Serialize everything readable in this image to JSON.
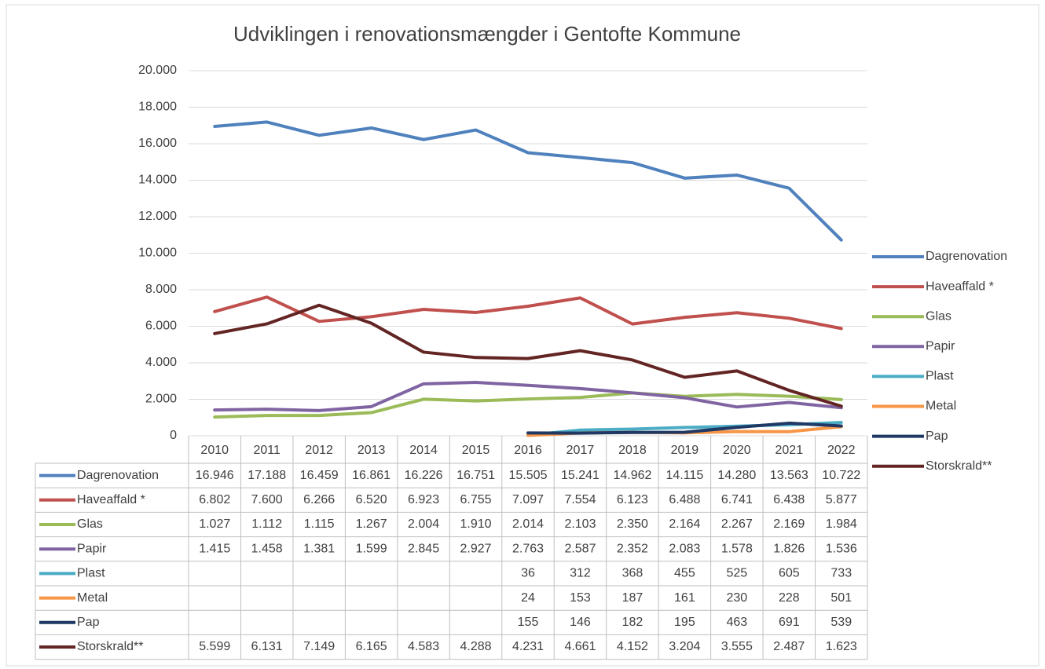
{
  "chart_data": {
    "type": "line",
    "title": "Udviklingen i renovationsmængder i Gentofte Kommune",
    "categories": [
      "2010",
      "2011",
      "2012",
      "2013",
      "2014",
      "2015",
      "2016",
      "2017",
      "2018",
      "2019",
      "2020",
      "2021",
      "2022"
    ],
    "ylim": [
      0,
      20000
    ],
    "yticks": [
      0,
      {
        "value": 2000,
        "label": "2.000"
      },
      {
        "value": 4000,
        "label": "4.000"
      },
      {
        "value": 6000,
        "label": "6.000"
      },
      {
        "value": 8000,
        "label": "8.000"
      },
      {
        "value": 10000,
        "label": "10.000"
      },
      {
        "value": 12000,
        "label": "12.000"
      },
      {
        "value": 14000,
        "label": "14.000"
      },
      {
        "value": 16000,
        "label": "16.000"
      },
      {
        "value": 18000,
        "label": "18.000"
      },
      {
        "value": 20000,
        "label": "20.000"
      }
    ],
    "grid": true,
    "legend": "right",
    "series": [
      {
        "name": "Dagrenovation",
        "color": "#4f81bd",
        "values": [
          16946,
          17188,
          16459,
          16861,
          16226,
          16751,
          15505,
          15241,
          14962,
          14115,
          14280,
          13563,
          10722
        ],
        "value_labels": [
          "16.946",
          "17.188",
          "16.459",
          "16.861",
          "16.226",
          "16.751",
          "15.505",
          "15.241",
          "14.962",
          "14.115",
          "14.280",
          "13.563",
          "10.722"
        ]
      },
      {
        "name": "Haveaffald *",
        "color": "#c0504d",
        "values": [
          6802,
          7600,
          6266,
          6520,
          6923,
          6755,
          7097,
          7554,
          6123,
          6488,
          6741,
          6438,
          5877
        ],
        "value_labels": [
          "6.802",
          "7.600",
          "6.266",
          "6.520",
          "6.923",
          "6.755",
          "7.097",
          "7.554",
          "6.123",
          "6.488",
          "6.741",
          "6.438",
          "5.877"
        ]
      },
      {
        "name": "Glas",
        "color": "#9bbb59",
        "values": [
          1027,
          1112,
          1115,
          1267,
          2004,
          1910,
          2014,
          2103,
          2350,
          2164,
          2267,
          2169,
          1984
        ],
        "value_labels": [
          "1.027",
          "1.112",
          "1.115",
          "1.267",
          "2.004",
          "1.910",
          "2.014",
          "2.103",
          "2.350",
          "2.164",
          "2.267",
          "2.169",
          "1.984"
        ]
      },
      {
        "name": "Papir",
        "color": "#8064a2",
        "values": [
          1415,
          1458,
          1381,
          1599,
          2845,
          2927,
          2763,
          2587,
          2352,
          2083,
          1578,
          1826,
          1536
        ],
        "value_labels": [
          "1.415",
          "1.458",
          "1.381",
          "1.599",
          "2.845",
          "2.927",
          "2.763",
          "2.587",
          "2.352",
          "2.083",
          "1.578",
          "1.826",
          "1.536"
        ]
      },
      {
        "name": "Plast",
        "color": "#4bacc6",
        "values": [
          null,
          null,
          null,
          null,
          null,
          null,
          36,
          312,
          368,
          455,
          525,
          605,
          733
        ]
      },
      {
        "name": "Metal",
        "color": "#f79646",
        "values": [
          null,
          null,
          null,
          null,
          null,
          null,
          24,
          153,
          187,
          161,
          230,
          228,
          501
        ]
      },
      {
        "name": "Pap",
        "color": "#1f3864",
        "values": [
          null,
          null,
          null,
          null,
          null,
          null,
          155,
          146,
          182,
          195,
          463,
          691,
          539
        ]
      },
      {
        "name": "Storskrald**",
        "color": "#632523",
        "values": [
          5599,
          6131,
          7149,
          6165,
          4583,
          4288,
          4231,
          4661,
          4152,
          3204,
          3555,
          2487,
          1623
        ],
        "value_labels": [
          "5.599",
          "6.131",
          "7.149",
          "6.165",
          "4.583",
          "4.288",
          "4.231",
          "4.661",
          "4.152",
          "3.204",
          "3.555",
          "2.487",
          "1.623"
        ]
      }
    ]
  }
}
